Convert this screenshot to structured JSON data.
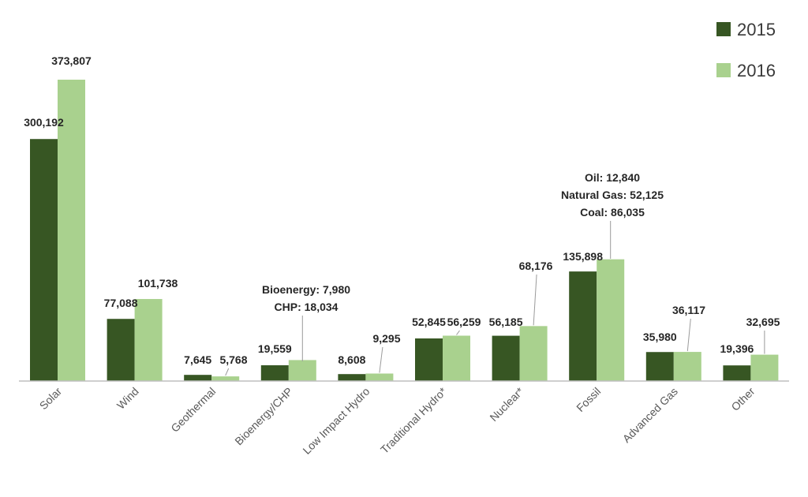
{
  "chart_data": {
    "type": "bar",
    "categories": [
      "Solar",
      "Wind",
      "Geothermal",
      "Bioenergy/CHP",
      "Low Impact Hydro",
      "Traditional Hydro*",
      "Nuclear*",
      "Fossil",
      "Advanced Gas",
      "Other"
    ],
    "series": [
      {
        "name": "2015",
        "color": "#375623",
        "values": [
          300192,
          77088,
          7645,
          19559,
          8608,
          52845,
          56185,
          135898,
          35980,
          19396
        ],
        "labels": [
          "300,192",
          "77,088",
          "7,645",
          "19,559",
          "8,608",
          "52,845",
          "56,185",
          "135,898",
          "35,980",
          "19,396"
        ]
      },
      {
        "name": "2016",
        "color": "#a9d18e",
        "values": [
          373807,
          101738,
          5768,
          26014,
          9295,
          56259,
          68176,
          150999,
          36117,
          32695
        ],
        "labels": [
          "373,807",
          "101,738",
          "5,768",
          "",
          "9,295",
          "56,259",
          "68,176",
          "",
          "36,117",
          "32,695"
        ]
      }
    ],
    "annotations": [
      {
        "category": "Bioenergy/CHP",
        "series": "2016",
        "lines": [
          "Bioenergy: 7,980",
          "CHP: 18,034"
        ]
      },
      {
        "category": "Fossil",
        "series": "2016",
        "lines": [
          "Oil: 12,840",
          "Natural Gas: 52,125",
          "Coal: 86,035"
        ]
      }
    ],
    "title": "",
    "xlabel": "",
    "ylabel": "",
    "ylim": [
      0,
      380000
    ],
    "grid": false,
    "legend": "top-right"
  }
}
